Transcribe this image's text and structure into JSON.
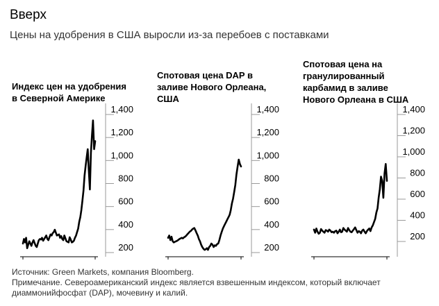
{
  "header": {
    "title": "Вверх",
    "subtitle": "Цены на удобрения в США выросли из-за перебоев с поставками"
  },
  "chart_data": [
    {
      "type": "line",
      "title_lines": [
        "Индекс цен на удобрения",
        "в Северной Америке"
      ],
      "yticks": [
        "1,400",
        "1,200",
        "1,000",
        "800",
        "600",
        "400",
        "200"
      ],
      "tick_values": [
        1400,
        1200,
        1000,
        800,
        600,
        400,
        200
      ],
      "ylim": [
        100,
        1400
      ],
      "series": [
        {
          "values": [
            230,
            270,
            240,
            280,
            190,
            220,
            250,
            230,
            210,
            240,
            260,
            235,
            210,
            200,
            230,
            260,
            270,
            265,
            280,
            255,
            270,
            285,
            300,
            270,
            260,
            285,
            310,
            300,
            320,
            330,
            350,
            325,
            300,
            305,
            310,
            280,
            295,
            270,
            260,
            300,
            275,
            250,
            245,
            240,
            285,
            265,
            240,
            245,
            255,
            280,
            300,
            330,
            360,
            420,
            460,
            520,
            600,
            690,
            820,
            900,
            980,
            1050,
            870,
            700,
            1020,
            1170,
            1300,
            1050,
            1120
          ]
        }
      ]
    },
    {
      "type": "line",
      "title_lines": [
        "Спотовая цена DAP в",
        "заливе Нового Орлеана,",
        "США"
      ],
      "yticks": [
        "1,400",
        "1,200",
        "1,000",
        "800",
        "600",
        "400",
        "200"
      ],
      "tick_values": [
        1400,
        1200,
        1000,
        800,
        600,
        400,
        200
      ],
      "ylim": [
        100,
        1400
      ],
      "series": [
        {
          "values": [
            280,
            300,
            260,
            290,
            250,
            240,
            245,
            250,
            255,
            262,
            270,
            275,
            280,
            275,
            285,
            290,
            300,
            312,
            322,
            334,
            340,
            352,
            360,
            365,
            345,
            322,
            300,
            270,
            250,
            220,
            200,
            185,
            175,
            180,
            190,
            175,
            200,
            210,
            230,
            220,
            200,
            215,
            210,
            225,
            230,
            260,
            300,
            330,
            360,
            380,
            400,
            420,
            440,
            460,
            480,
            520,
            580,
            620,
            680,
            740,
            830,
            900,
            960,
            920,
            900
          ]
        }
      ]
    },
    {
      "type": "line",
      "title_lines": [
        "Спотовая цена на",
        "гранулированный",
        "карбамид в заливе",
        "Нового Орлеана в США"
      ],
      "yticks": [
        "1,400",
        "1,200",
        "1,000",
        "800",
        "600",
        "400",
        "200"
      ],
      "tick_values": [
        1400,
        1200,
        1000,
        800,
        600,
        400,
        200
      ],
      "ylim": [
        100,
        1400
      ],
      "series": [
        {
          "values": [
            260,
            230,
            270,
            240,
            220,
            230,
            265,
            250,
            240,
            230,
            255,
            250,
            240,
            260,
            250,
            235,
            240,
            230,
            245,
            250,
            225,
            240,
            260,
            235,
            240,
            275,
            260,
            250,
            240,
            275,
            255,
            240,
            235,
            250,
            265,
            280,
            255,
            230,
            245,
            240,
            225,
            250,
            260,
            240,
            225,
            245,
            260,
            270,
            245,
            280,
            300,
            330,
            360,
            420,
            460,
            560,
            640,
            760,
            720,
            560,
            790,
            880,
            720
          ]
        }
      ]
    }
  ],
  "footer": {
    "source": "Источник: Green Markets, компания Bloomberg.",
    "note_line1": "Примечание. Североамериканский индекс является взвешенным индексом, который включает",
    "note_line2": "диаммонийфосфат (DAP), мочевину и калий."
  }
}
